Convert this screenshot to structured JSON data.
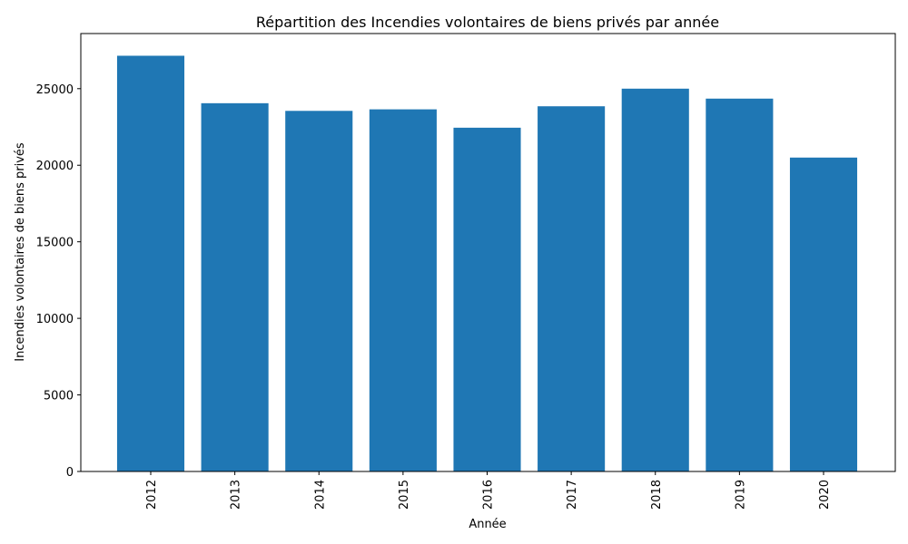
{
  "chart_data": {
    "type": "bar",
    "title": "Répartition des Incendies volontaires de biens privés par année",
    "xlabel": "Année",
    "ylabel": "Incendies volontaires de biens privés",
    "categories": [
      "2012",
      "2013",
      "2014",
      "2015",
      "2016",
      "2017",
      "2018",
      "2019",
      "2020"
    ],
    "values": [
      27150,
      24050,
      23550,
      23650,
      22450,
      23850,
      25000,
      24350,
      20500
    ],
    "ylim": [
      0,
      28600
    ],
    "yticks": [
      0,
      5000,
      10000,
      15000,
      20000,
      25000
    ],
    "ytick_labels": [
      "0",
      "5000",
      "10000",
      "15000",
      "20000",
      "25000"
    ],
    "bar_color": "#1f77b4",
    "grid": false,
    "x_tick_rotation": "vertical"
  }
}
